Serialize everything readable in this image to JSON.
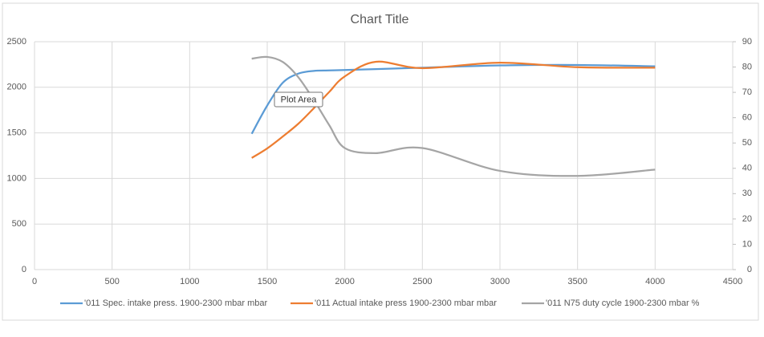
{
  "chart_data": {
    "type": "scatter",
    "title": "Chart Title",
    "tooltip": "Plot Area",
    "x": [
      1400,
      1500,
      1600,
      1700,
      1800,
      1900,
      2000,
      2200,
      2500,
      3000,
      3500,
      4000
    ],
    "series": [
      {
        "name": "'011 Spec. intake press. 1900-2300 mbar  mbar",
        "color": "#5b9bd5",
        "values": [
          1490,
          1800,
          2050,
          2150,
          2180,
          2185,
          2190,
          2200,
          2215,
          2240,
          2245,
          2230
        ]
      },
      {
        "name": "'011 Actual intake press 1900-2300 mbar  mbar",
        "color": "#ed7d31",
        "values": [
          1225,
          1330,
          1460,
          1600,
          1770,
          1950,
          2120,
          2280,
          2210,
          2270,
          2220,
          2215
        ]
      },
      {
        "name": "'011 N75 duty cycle 1900-2300 mbar  %",
        "color": "#a5a5a5",
        "axis": "y2",
        "values": [
          83.3,
          84,
          82,
          76,
          67,
          57,
          48,
          46,
          48,
          39,
          37,
          39.5
        ]
      }
    ],
    "xlim": [
      0,
      4500
    ],
    "xticks": [
      0,
      500,
      1000,
      1500,
      2000,
      2500,
      3000,
      3500,
      4000,
      4500
    ],
    "ylim": [
      0,
      2500
    ],
    "yticks": [
      0,
      500,
      1000,
      1500,
      2000,
      2500
    ],
    "y2lim": [
      0,
      90
    ],
    "y2ticks": [
      0,
      10,
      20,
      30,
      40,
      50,
      60,
      70,
      80,
      90
    ],
    "grid": true,
    "smooth": true,
    "legend": "bottom"
  }
}
